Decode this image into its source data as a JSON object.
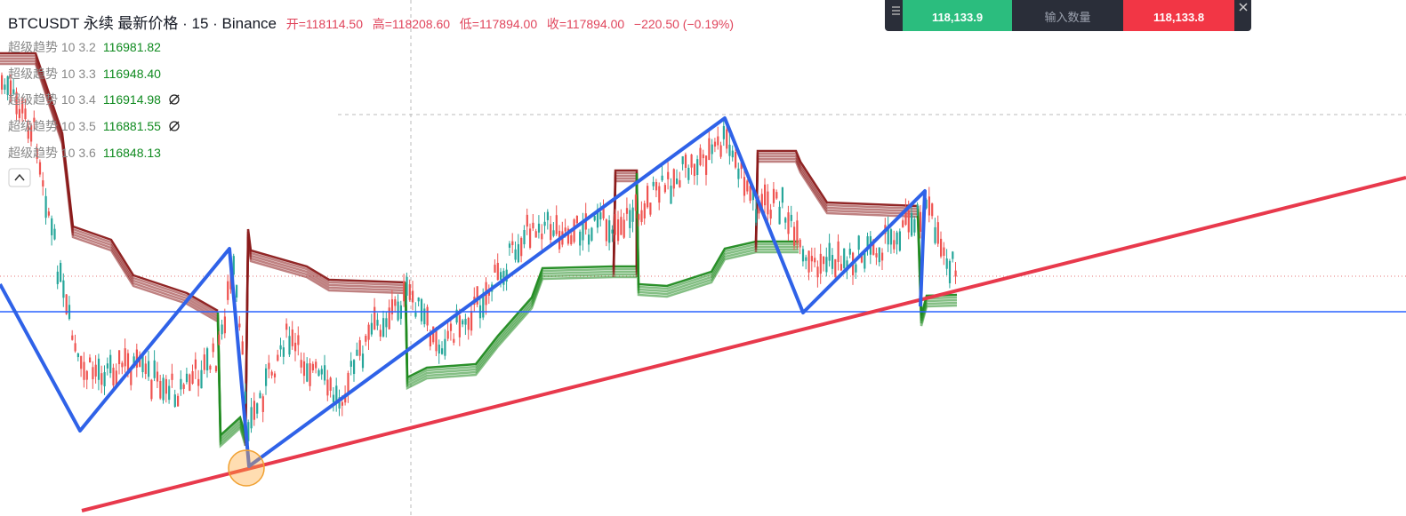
{
  "header": {
    "symbol": "BTCUSDT 永续 最新价格 · 15 · Binance",
    "ohlc": [
      "开=118114.50",
      "高=118208.60",
      "低=117894.00",
      "收=117894.00",
      "−220.50 (−0.19%)"
    ]
  },
  "indicators": [
    {
      "name": "超级趋势 10 3.2",
      "value": "116981.82"
    },
    {
      "name": "超级趋势 10 3.3",
      "value": "116948.40"
    },
    {
      "name": "超级趋势 10 3.4",
      "value": "116914.98"
    },
    {
      "name": "超级趋势 10 3.5",
      "value": "116881.55"
    },
    {
      "name": "超级趋势 10 3.6",
      "value": "116848.13"
    }
  ],
  "order_panel": {
    "sell_price": "118,133.9",
    "quantity_placeholder": "输入数量",
    "buy_price": "118,133.8"
  }
}
